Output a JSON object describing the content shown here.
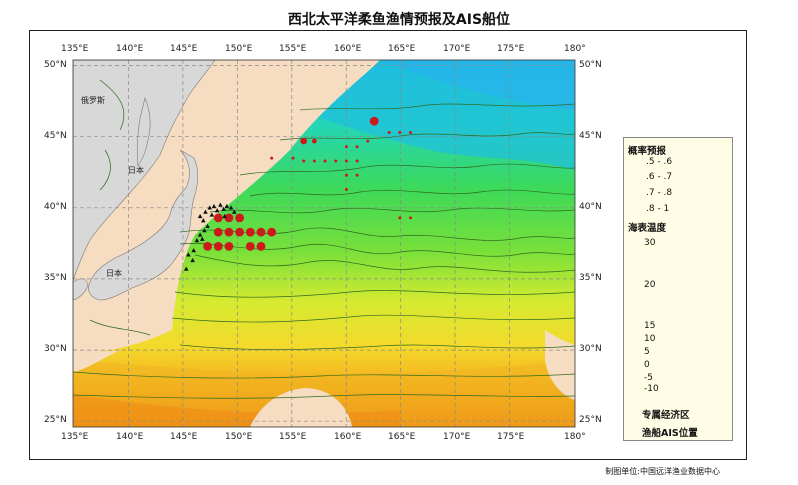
{
  "title": "西北太平洋柔鱼渔情预报及AIS船位",
  "map": {
    "lon_range": [
      134,
      181
    ],
    "lat_range": [
      24.5,
      50.3
    ],
    "lon_ticks": [
      "135°E",
      "140°E",
      "145°E",
      "150°E",
      "155°E",
      "160°E",
      "165°E",
      "170°E",
      "175°E",
      "180°"
    ],
    "lat_ticks": [
      "50°N",
      "45°N",
      "40°N",
      "35°N",
      "30°N",
      "25°N"
    ],
    "land_labels": [
      "俄罗斯",
      "日本",
      "日本"
    ],
    "colors": {
      "land": "#d8d8d8",
      "eez": "#f6dcc0",
      "contour": "#2f6b1f",
      "grid": "#888888"
    }
  },
  "forecast_points": [
    {
      "lon": 146.6,
      "lat": 37.2,
      "p": 0.85
    },
    {
      "lon": 147.6,
      "lat": 37.2,
      "p": 0.85
    },
    {
      "lon": 148.6,
      "lat": 37.2,
      "p": 0.85
    },
    {
      "lon": 150.6,
      "lat": 37.2,
      "p": 0.85
    },
    {
      "lon": 151.6,
      "lat": 37.2,
      "p": 0.85
    },
    {
      "lon": 147.6,
      "lat": 38.2,
      "p": 0.85
    },
    {
      "lon": 148.6,
      "lat": 38.2,
      "p": 0.85
    },
    {
      "lon": 149.6,
      "lat": 38.2,
      "p": 0.85
    },
    {
      "lon": 150.6,
      "lat": 38.2,
      "p": 0.85
    },
    {
      "lon": 151.6,
      "lat": 38.2,
      "p": 0.85
    },
    {
      "lon": 152.6,
      "lat": 38.2,
      "p": 0.85
    },
    {
      "lon": 147.6,
      "lat": 39.2,
      "p": 0.85
    },
    {
      "lon": 148.6,
      "lat": 39.2,
      "p": 0.85
    },
    {
      "lon": 149.6,
      "lat": 39.2,
      "p": 0.85
    },
    {
      "lon": 155.6,
      "lat": 44.6,
      "p": 0.75
    },
    {
      "lon": 156.6,
      "lat": 44.6,
      "p": 0.65
    },
    {
      "lon": 162.2,
      "lat": 46.0,
      "p": 0.85
    },
    {
      "lon": 159.6,
      "lat": 44.2,
      "p": 0.55
    },
    {
      "lon": 160.6,
      "lat": 44.2,
      "p": 0.55
    },
    {
      "lon": 161.6,
      "lat": 44.6,
      "p": 0.55
    },
    {
      "lon": 163.6,
      "lat": 45.2,
      "p": 0.55
    },
    {
      "lon": 164.6,
      "lat": 45.2,
      "p": 0.55
    },
    {
      "lon": 165.6,
      "lat": 45.2,
      "p": 0.55
    },
    {
      "lon": 152.6,
      "lat": 43.4,
      "p": 0.55
    },
    {
      "lon": 154.6,
      "lat": 43.4,
      "p": 0.55
    },
    {
      "lon": 155.6,
      "lat": 43.2,
      "p": 0.55
    },
    {
      "lon": 156.6,
      "lat": 43.2,
      "p": 0.55
    },
    {
      "lon": 157.6,
      "lat": 43.2,
      "p": 0.55
    },
    {
      "lon": 158.6,
      "lat": 43.2,
      "p": 0.55
    },
    {
      "lon": 159.6,
      "lat": 43.2,
      "p": 0.55
    },
    {
      "lon": 160.6,
      "lat": 43.2,
      "p": 0.55
    },
    {
      "lon": 159.6,
      "lat": 42.2,
      "p": 0.55
    },
    {
      "lon": 160.6,
      "lat": 42.2,
      "p": 0.55
    },
    {
      "lon": 159.6,
      "lat": 41.2,
      "p": 0.55
    },
    {
      "lon": 164.6,
      "lat": 39.2,
      "p": 0.55
    },
    {
      "lon": 165.6,
      "lat": 39.2,
      "p": 0.55
    }
  ],
  "ais_positions": [
    [
      146.4,
      39.6
    ],
    [
      146.8,
      39.9
    ],
    [
      147.2,
      40.0
    ],
    [
      147.5,
      39.7
    ],
    [
      147.8,
      40.1
    ],
    [
      148.1,
      39.8
    ],
    [
      148.4,
      40.0
    ],
    [
      148.8,
      39.9
    ],
    [
      149.1,
      39.6
    ],
    [
      146.2,
      39.0
    ],
    [
      146.6,
      38.6
    ],
    [
      146.3,
      38.3
    ],
    [
      145.9,
      38.0
    ],
    [
      146.1,
      37.7
    ],
    [
      145.6,
      37.6
    ],
    [
      145.3,
      36.9
    ],
    [
      145.9,
      39.3
    ],
    [
      147.0,
      39.4
    ],
    [
      148.2,
      39.3
    ],
    [
      144.8,
      36.6
    ],
    [
      145.2,
      36.2
    ],
    [
      144.6,
      35.6
    ]
  ],
  "legend": {
    "prob_title": "概率预报",
    "prob_items": [
      {
        "label": ".5 - .6",
        "r": 1.5
      },
      {
        "label": ".6 - .7",
        "r": 2.4
      },
      {
        "label": ".7 - .8",
        "r": 3.3
      },
      {
        "label": ".8 - 1",
        "r": 4.4
      }
    ],
    "sst_title": "海表温度",
    "sst_labels": [
      "30",
      "20",
      "15",
      "10",
      "5",
      "0",
      "-5",
      "-10"
    ],
    "sst_colors": [
      "#e85a0e",
      "#f59a18",
      "#f4d22a",
      "#cde838",
      "#5cd935",
      "#2dd67a",
      "#19c8d2",
      "#1d6fe4"
    ],
    "eez_label": "专属经济区",
    "ais_label": "渔船AIS位置",
    "dot_color": "#cc1a1a"
  },
  "credit": "制图单位:中国远洋渔业数据中心"
}
